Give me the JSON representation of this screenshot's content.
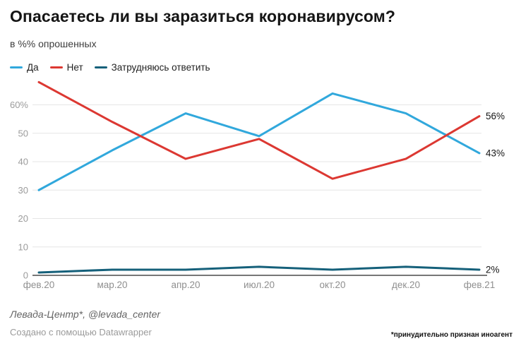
{
  "header": {
    "title": "Опасаетесь ли вы заразиться коронавирусом?",
    "subtitle": "в %% опрошенных"
  },
  "chart_data": {
    "type": "line",
    "x": [
      "фев.20",
      "мар.20",
      "апр.20",
      "июл.20",
      "окт.20",
      "дек.20",
      "фев.21"
    ],
    "series": [
      {
        "name": "Да",
        "color": "#31A8DC",
        "values": [
          30,
          44,
          57,
          49,
          64,
          57,
          43
        ],
        "end_label": "43%"
      },
      {
        "name": "Нет",
        "color": "#DC3832",
        "values": [
          68,
          54,
          41,
          48,
          34,
          41,
          56
        ],
        "end_label": "56%"
      },
      {
        "name": "Затрудняюсь ответить",
        "color": "#15607A",
        "values": [
          1,
          2,
          2,
          3,
          2,
          3,
          2
        ],
        "end_label": "2%"
      }
    ],
    "yticks": [
      {
        "v": 0,
        "label": "0"
      },
      {
        "v": 10,
        "label": "10"
      },
      {
        "v": 20,
        "label": "20"
      },
      {
        "v": 30,
        "label": "30"
      },
      {
        "v": 40,
        "label": "40"
      },
      {
        "v": 50,
        "label": "50"
      },
      {
        "v": 60,
        "label": "60%"
      }
    ],
    "ylim": [
      0,
      70
    ],
    "grid": true,
    "legend_position": "top"
  },
  "footer": {
    "source": "Левада-Центр*, @levada_center",
    "byline": "Создано с помощью Datawrapper",
    "note": "*принудительно признан иноагент"
  }
}
